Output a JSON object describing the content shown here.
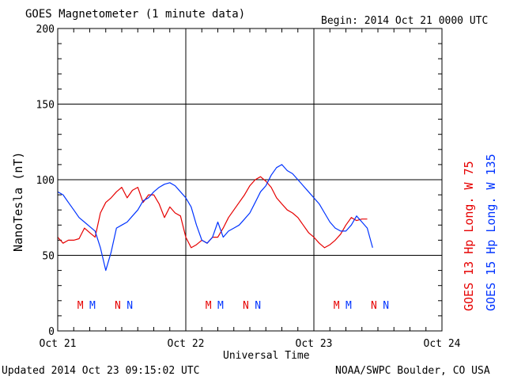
{
  "title": "GOES Magnetometer (1 minute data)",
  "begin": "Begin:  2014 Oct 21 0000 UTC",
  "updated": "Updated 2014 Oct 23 09:15:02 UTC",
  "credit": "NOAA/SWPC Boulder, CO USA",
  "chart_data": {
    "type": "line",
    "title": "GOES Magnetometer (1 minute data)",
    "xlabel": "Universal Time",
    "ylabel": "NanoTesla (nT)",
    "ylim": [
      0,
      200
    ],
    "yticks": [
      0,
      50,
      100,
      150,
      200
    ],
    "xlim": [
      0,
      72
    ],
    "xticks": [
      0,
      24,
      48,
      72
    ],
    "xtick_labels": [
      "Oct 21",
      "Oct 22",
      "Oct 23",
      "Oct 24"
    ],
    "grid": true,
    "legend_position": "right-vertical",
    "series": [
      {
        "name": "GOES 13 Hp  Long. W 75",
        "color": "#e60000",
        "x": [
          0,
          1,
          2,
          3,
          4,
          5,
          6,
          7,
          8,
          9,
          10,
          11,
          12,
          13,
          14,
          15,
          16,
          17,
          18,
          19,
          20,
          21,
          22,
          23,
          24,
          25,
          26,
          27,
          28,
          29,
          30,
          31,
          32,
          33,
          34,
          35,
          36,
          37,
          38,
          39,
          40,
          41,
          42,
          43,
          44,
          45,
          46,
          47,
          48,
          49,
          50,
          51,
          52,
          53,
          54,
          55,
          56,
          57,
          58
        ],
        "y": [
          62,
          58,
          60,
          60,
          61,
          68,
          65,
          62,
          78,
          85,
          88,
          92,
          95,
          88,
          93,
          95,
          85,
          90,
          90,
          84,
          75,
          82,
          78,
          76,
          62,
          55,
          57,
          60,
          58,
          62,
          62,
          68,
          75,
          80,
          85,
          90,
          96,
          100,
          102,
          99,
          95,
          88,
          84,
          80,
          78,
          75,
          70,
          65,
          62,
          58,
          55,
          57,
          60,
          64,
          70,
          75,
          73,
          74,
          74
        ]
      },
      {
        "name": "GOES 15 Hp  Long. W 135",
        "color": "#0033ff",
        "x": [
          0,
          1,
          2,
          3,
          4,
          5,
          6,
          7,
          8,
          9,
          10,
          11,
          12,
          13,
          14,
          15,
          16,
          17,
          18,
          19,
          20,
          21,
          22,
          23,
          24,
          25,
          26,
          27,
          28,
          29,
          30,
          31,
          32,
          33,
          34,
          35,
          36,
          37,
          38,
          39,
          40,
          41,
          42,
          43,
          44,
          45,
          46,
          47,
          48,
          49,
          50,
          51,
          52,
          53,
          54,
          55,
          56,
          57,
          58,
          59
        ],
        "y": [
          92,
          90,
          85,
          80,
          75,
          72,
          69,
          66,
          55,
          40,
          52,
          68,
          70,
          72,
          76,
          80,
          86,
          88,
          92,
          95,
          97,
          98,
          96,
          92,
          88,
          82,
          70,
          60,
          58,
          62,
          72,
          62,
          66,
          68,
          70,
          74,
          78,
          85,
          92,
          96,
          103,
          108,
          110,
          106,
          104,
          100,
          96,
          92,
          88,
          84,
          78,
          72,
          68,
          66,
          66,
          70,
          76,
          72,
          68,
          55
        ]
      }
    ],
    "event_markers": [
      {
        "label": "M",
        "x": 4.25,
        "color": "#e60000"
      },
      {
        "label": "M",
        "x": 6.5,
        "color": "#0033ff"
      },
      {
        "label": "N",
        "x": 11.25,
        "color": "#e60000"
      },
      {
        "label": "N",
        "x": 13.5,
        "color": "#0033ff"
      },
      {
        "label": "M",
        "x": 28.25,
        "color": "#e60000"
      },
      {
        "label": "M",
        "x": 30.5,
        "color": "#0033ff"
      },
      {
        "label": "N",
        "x": 35.25,
        "color": "#e60000"
      },
      {
        "label": "N",
        "x": 37.5,
        "color": "#0033ff"
      },
      {
        "label": "M",
        "x": 52.25,
        "color": "#e60000"
      },
      {
        "label": "M",
        "x": 54.5,
        "color": "#0033ff"
      },
      {
        "label": "N",
        "x": 59.25,
        "color": "#e60000"
      },
      {
        "label": "N",
        "x": 61.5,
        "color": "#0033ff"
      }
    ]
  }
}
